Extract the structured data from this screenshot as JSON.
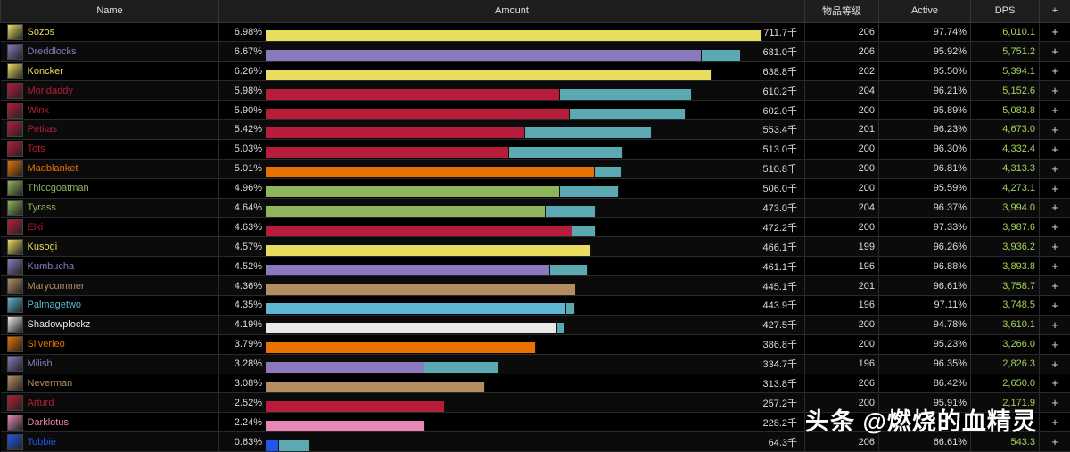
{
  "headers": {
    "name": "Name",
    "amount": "Amount",
    "ilvl": "物品等级",
    "active": "Active",
    "dps": "DPS",
    "add": "+"
  },
  "max_amount": 711.7,
  "pet_color": "#5aa9b3",
  "rows": [
    {
      "name": "Sozos",
      "color": "#e8dd5f",
      "icon": "rogue-outlaw-icon",
      "pct": "6.98%",
      "amount": "711.7千",
      "amount_value": 711.7,
      "primary_share": 1.0,
      "ilvl": "206",
      "active": "97.74%",
      "dps": "6,010.1"
    },
    {
      "name": "Dreddlocks",
      "color": "#8b79c0",
      "icon": "warlock-destruction-icon",
      "pct": "6.67%",
      "amount": "681.0千",
      "amount_value": 681.0,
      "primary_share": 0.917,
      "ilvl": "206",
      "active": "95.92%",
      "dps": "5,751.2"
    },
    {
      "name": "Koncker",
      "color": "#e8dd5f",
      "icon": "rogue-outlaw-icon",
      "pct": "6.26%",
      "amount": "638.8千",
      "amount_value": 638.8,
      "primary_share": 1.0,
      "ilvl": "202",
      "active": "95.50%",
      "dps": "5,394.1"
    },
    {
      "name": "Moridaddy",
      "color": "#b71c3a",
      "icon": "death-knight-unholy-icon",
      "pct": "5.98%",
      "amount": "610.2千",
      "amount_value": 610.2,
      "primary_share": 0.69,
      "ilvl": "204",
      "active": "96.21%",
      "dps": "5,152.6"
    },
    {
      "name": "Wink",
      "color": "#b71c3a",
      "icon": "death-knight-unholy-icon",
      "pct": "5.90%",
      "amount": "602.0千",
      "amount_value": 602.0,
      "primary_share": 0.723,
      "ilvl": "200",
      "active": "95.89%",
      "dps": "5,083.8"
    },
    {
      "name": "Petitas",
      "color": "#b71c3a",
      "icon": "death-knight-unholy-icon",
      "pct": "5.42%",
      "amount": "553.4千",
      "amount_value": 553.4,
      "primary_share": 0.672,
      "ilvl": "201",
      "active": "96.23%",
      "dps": "4,673.0"
    },
    {
      "name": "Tots",
      "color": "#b71c3a",
      "icon": "death-knight-unholy-icon",
      "pct": "5.03%",
      "amount": "513.0千",
      "amount_value": 513.0,
      "primary_share": 0.679,
      "ilvl": "200",
      "active": "96.30%",
      "dps": "4,332.4"
    },
    {
      "name": "Madblanket",
      "color": "#e87100",
      "icon": "druid-balance-icon",
      "pct": "5.01%",
      "amount": "510.8千",
      "amount_value": 510.8,
      "primary_share": 0.923,
      "ilvl": "200",
      "active": "96.81%",
      "dps": "4,313.3"
    },
    {
      "name": "Thiccgoatman",
      "color": "#8fb55c",
      "icon": "hunter-survival-icon",
      "pct": "4.96%",
      "amount": "506.0千",
      "amount_value": 506.0,
      "primary_share": 0.833,
      "ilvl": "200",
      "active": "95.59%",
      "dps": "4,273.1"
    },
    {
      "name": "Tyrass",
      "color": "#8fb55c",
      "icon": "hunter-survival-icon",
      "pct": "4.64%",
      "amount": "473.0千",
      "amount_value": 473.0,
      "primary_share": 0.849,
      "ilvl": "204",
      "active": "96.37%",
      "dps": "3,994.0"
    },
    {
      "name": "Elki",
      "color": "#b71c3a",
      "icon": "death-knight-frost-icon",
      "pct": "4.63%",
      "amount": "472.2千",
      "amount_value": 472.2,
      "primary_share": 0.93,
      "ilvl": "200",
      "active": "97.33%",
      "dps": "3,987.6"
    },
    {
      "name": "Kusogi",
      "color": "#e8dd5f",
      "icon": "rogue-outlaw-icon",
      "pct": "4.57%",
      "amount": "466.1千",
      "amount_value": 466.1,
      "primary_share": 1.0,
      "ilvl": "199",
      "active": "96.26%",
      "dps": "3,936.2"
    },
    {
      "name": "Kumbucha",
      "color": "#8b79c0",
      "icon": "warlock-affliction-icon",
      "pct": "4.52%",
      "amount": "461.1千",
      "amount_value": 461.1,
      "primary_share": 0.884,
      "ilvl": "196",
      "active": "96.88%",
      "dps": "3,893.8"
    },
    {
      "name": "Marycummer",
      "color": "#b58d63",
      "icon": "warrior-fury-icon",
      "pct": "4.36%",
      "amount": "445.1千",
      "amount_value": 445.1,
      "primary_share": 1.0,
      "ilvl": "201",
      "active": "96.61%",
      "dps": "3,758.7"
    },
    {
      "name": "Palmagetwo",
      "color": "#5fb7d4",
      "icon": "mage-frost-icon",
      "pct": "4.35%",
      "amount": "443.9千",
      "amount_value": 443.9,
      "primary_share": 0.971,
      "ilvl": "196",
      "active": "97.11%",
      "dps": "3,748.5"
    },
    {
      "name": "Shadowplockz",
      "color": "#e8e8e8",
      "icon": "priest-shadow-icon",
      "pct": "4.19%",
      "amount": "427.5千",
      "amount_value": 427.5,
      "primary_share": 0.976,
      "ilvl": "200",
      "active": "94.78%",
      "dps": "3,610.1"
    },
    {
      "name": "Silverleo",
      "color": "#e87100",
      "icon": "druid-feral-icon",
      "pct": "3.79%",
      "amount": "386.8千",
      "amount_value": 386.8,
      "primary_share": 1.0,
      "ilvl": "200",
      "active": "95.23%",
      "dps": "3,266.0"
    },
    {
      "name": "Milish",
      "color": "#8b79c0",
      "icon": "warlock-demonology-icon",
      "pct": "3.28%",
      "amount": "334.7千",
      "amount_value": 334.7,
      "primary_share": 0.68,
      "ilvl": "196",
      "active": "96.35%",
      "dps": "2,826.3"
    },
    {
      "name": "Neverman",
      "color": "#b58d63",
      "icon": "warrior-arms-icon",
      "pct": "3.08%",
      "amount": "313.8千",
      "amount_value": 313.8,
      "primary_share": 1.0,
      "ilvl": "206",
      "active": "86.42%",
      "dps": "2,650.0"
    },
    {
      "name": "Arturd",
      "color": "#b71c3a",
      "icon": "death-knight-frost-icon",
      "pct": "2.52%",
      "amount": "257.2千",
      "amount_value": 257.2,
      "primary_share": 1.0,
      "ilvl": "200",
      "active": "95.91%",
      "dps": "2,171.9"
    },
    {
      "name": "Darklotus",
      "color": "#e787b5",
      "icon": "paladin-retribution-icon",
      "pct": "2.24%",
      "amount": "228.2千",
      "amount_value": 228.2,
      "primary_share": 1.0,
      "ilvl": "",
      "active": "",
      "dps": ""
    },
    {
      "name": "Tobbie",
      "color": "#2255ee",
      "icon": "shaman-enhancement-icon",
      "pct": "0.63%",
      "amount": "64.3千",
      "amount_value": 64.3,
      "primary_share": 0.3,
      "ilvl": "206",
      "active": "66.61%",
      "dps": "543.3"
    }
  ],
  "watermark": "头条 @燃烧的血精灵"
}
